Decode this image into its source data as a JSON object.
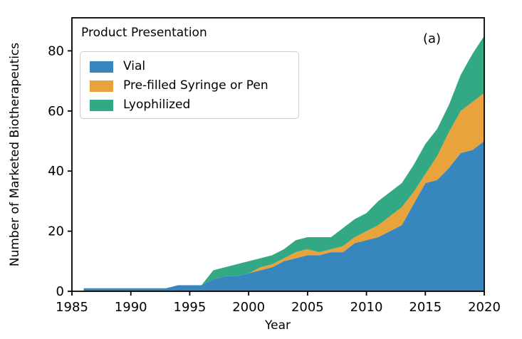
{
  "figure": {
    "panel_label": "(a)",
    "legend": {
      "title": "Product Presentation",
      "items": [
        {
          "label": "Vial",
          "color": "#3787be"
        },
        {
          "label": "Pre-filled Syringe or Pen",
          "color": "#e8a33d"
        },
        {
          "label": "Lyophilized",
          "color": "#33a884"
        }
      ]
    },
    "axis_color": "#000000",
    "background_color": "#ffffff"
  },
  "chart_data": {
    "type": "area",
    "stacked": true,
    "title": "",
    "xlabel": "Year",
    "ylabel": "Number of Marketed Biotherapeutics",
    "x": [
      1986,
      1987,
      1988,
      1989,
      1990,
      1991,
      1992,
      1993,
      1994,
      1995,
      1996,
      1997,
      1998,
      1999,
      2000,
      2001,
      2002,
      2003,
      2004,
      2005,
      2006,
      2007,
      2008,
      2009,
      2010,
      2011,
      2012,
      2013,
      2014,
      2015,
      2016,
      2017,
      2018,
      2019,
      2020
    ],
    "series": [
      {
        "name": "Vial",
        "color": "#3787be",
        "values": [
          1,
          1,
          1,
          1,
          1,
          1,
          1,
          1,
          2,
          2,
          2,
          4,
          5,
          5,
          6,
          7,
          8,
          10,
          11,
          12,
          12,
          13,
          13,
          16,
          17,
          18,
          20,
          22,
          29,
          36,
          37,
          41,
          46,
          47,
          50
        ]
      },
      {
        "name": "Pre-filled Syringe or Pen",
        "color": "#e8a33d",
        "values": [
          0,
          0,
          0,
          0,
          0,
          0,
          0,
          0,
          0,
          0,
          0,
          0,
          0,
          0,
          0,
          1,
          1,
          1,
          2,
          2,
          1,
          1,
          2,
          2,
          3,
          4,
          5,
          6,
          4,
          3,
          8,
          12,
          14,
          16,
          16
        ]
      },
      {
        "name": "Lyophilized",
        "color": "#33a884",
        "values": [
          0,
          0,
          0,
          0,
          0,
          0,
          0,
          0,
          0,
          0,
          0,
          3,
          3,
          4,
          4,
          3,
          3,
          3,
          4,
          4,
          5,
          4,
          6,
          6,
          6,
          8,
          8,
          8,
          9,
          10,
          9,
          9,
          12,
          16,
          19
        ]
      }
    ],
    "xlim": [
      1985,
      2020
    ],
    "ylim": [
      0,
      91
    ],
    "xticks": [
      1985,
      1990,
      1995,
      2000,
      2005,
      2010,
      2015,
      2020
    ],
    "yticks": [
      0,
      20,
      40,
      60,
      80
    ],
    "grid": false,
    "legend_position": "upper left"
  }
}
